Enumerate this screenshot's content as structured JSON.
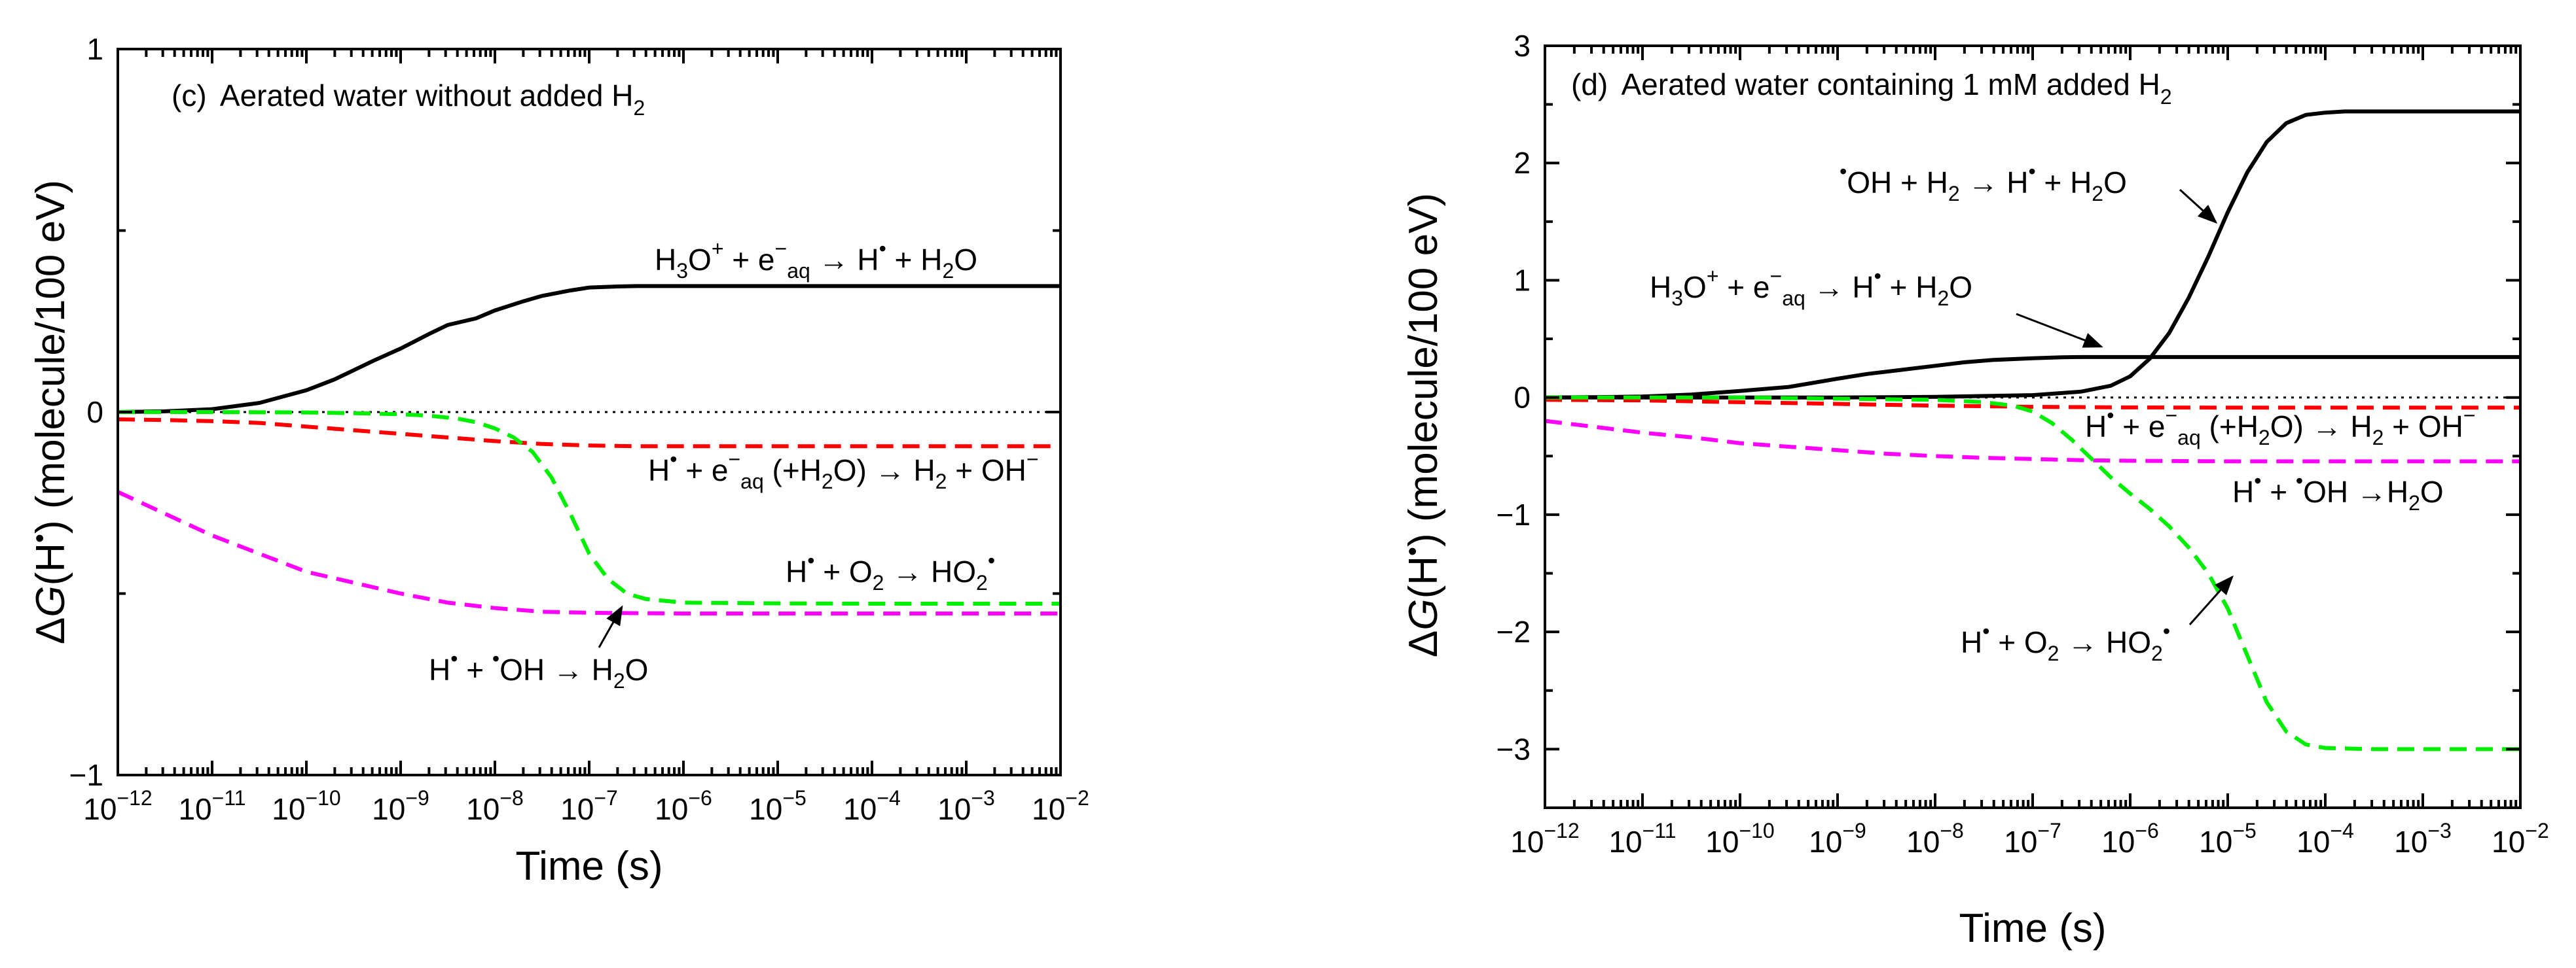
{
  "chart_data": [
    {
      "type": "line",
      "panel": "c",
      "title_prefix": "(c)",
      "title": "Aerated water without added H",
      "title_sub": "2",
      "xlabel": "Time (s)",
      "ylabel_prefix": "Δ",
      "ylabel_var": "G",
      "ylabel_rest": "(H",
      "ylabel_sup": "•",
      "ylabel_end": ") (molecule/100 eV)",
      "x_scale": "log",
      "xlim_exp": [
        -12,
        -2
      ],
      "ylim": [
        -1,
        1
      ],
      "x_ticks": [
        {
          "exp": -12,
          "base": "10",
          "label": "−12"
        },
        {
          "exp": -11,
          "base": "10",
          "label": "−11"
        },
        {
          "exp": -10,
          "base": "10",
          "label": "−10"
        },
        {
          "exp": -9,
          "base": "10",
          "label": "−9"
        },
        {
          "exp": -8,
          "base": "10",
          "label": "−8"
        },
        {
          "exp": -7,
          "base": "10",
          "label": "−7"
        },
        {
          "exp": -6,
          "base": "10",
          "label": "−6"
        },
        {
          "exp": -5,
          "base": "10",
          "label": "−5"
        },
        {
          "exp": -4,
          "base": "10",
          "label": "−4"
        },
        {
          "exp": -3,
          "base": "10",
          "label": "−3"
        },
        {
          "exp": -2,
          "base": "10",
          "label": "−2"
        }
      ],
      "y_ticks": [
        {
          "value": 1,
          "label": "1"
        },
        {
          "value": 0,
          "label": "0"
        },
        {
          "value": -1,
          "label": "−1"
        }
      ],
      "zero_line": true,
      "series": [
        {
          "name": "H3O+ + e-aq -> H + H2O",
          "color": "#000000",
          "style": "solid",
          "x": [
            -12,
            -11.5,
            -11,
            -10.5,
            -10,
            -9.7,
            -9.5,
            -9.3,
            -9.0,
            -8.7,
            -8.5,
            -8.2,
            -8.0,
            -7.7,
            -7.5,
            -7.2,
            -7.0,
            -6.7,
            -6.5,
            -6.0,
            -5.0,
            -4.0,
            -3.0,
            -2.0
          ],
          "y": [
            0,
            0.002,
            0.008,
            0.025,
            0.06,
            0.09,
            0.115,
            0.14,
            0.175,
            0.215,
            0.24,
            0.258,
            0.28,
            0.305,
            0.32,
            0.335,
            0.343,
            0.346,
            0.347,
            0.347,
            0.347,
            0.347,
            0.347,
            0.347
          ]
        },
        {
          "name": "H + e-aq (+H2O) -> H2 + OH-",
          "color": "#ff0000",
          "style": "dashed",
          "x": [
            -12,
            -11.5,
            -11,
            -10.5,
            -10,
            -9.5,
            -9,
            -8.5,
            -8,
            -7.5,
            -7,
            -6.5,
            -6,
            -5,
            -4,
            -3,
            -2
          ],
          "y": [
            -0.02,
            -0.022,
            -0.025,
            -0.03,
            -0.04,
            -0.05,
            -0.06,
            -0.07,
            -0.08,
            -0.088,
            -0.092,
            -0.094,
            -0.094,
            -0.094,
            -0.094,
            -0.094,
            -0.094
          ]
        },
        {
          "name": "H + O2 -> HO2",
          "color": "#00ee00",
          "style": "dashed",
          "x": [
            -12,
            -11,
            -10,
            -9.5,
            -9,
            -8.7,
            -8.4,
            -8.2,
            -8.0,
            -7.8,
            -7.6,
            -7.4,
            -7.2,
            -7.0,
            -6.8,
            -6.6,
            -6.4,
            -6.2,
            -6.0,
            -5.0,
            -4.0,
            -3.0,
            -2.0
          ],
          "y": [
            0,
            0,
            -0.001,
            -0.003,
            -0.006,
            -0.01,
            -0.018,
            -0.028,
            -0.045,
            -0.07,
            -0.11,
            -0.18,
            -0.28,
            -0.39,
            -0.46,
            -0.5,
            -0.515,
            -0.52,
            -0.525,
            -0.527,
            -0.528,
            -0.528,
            -0.528
          ]
        },
        {
          "name": "H + OH -> H2O",
          "color": "#ff00ff",
          "style": "dashed",
          "x": [
            -12,
            -11.5,
            -11,
            -10.5,
            -10,
            -9.5,
            -9,
            -8.5,
            -8,
            -7.5,
            -7,
            -6.5,
            -6,
            -5,
            -4,
            -3,
            -2
          ],
          "y": [
            -0.22,
            -0.28,
            -0.34,
            -0.39,
            -0.44,
            -0.47,
            -0.5,
            -0.525,
            -0.54,
            -0.55,
            -0.553,
            -0.554,
            -0.555,
            -0.555,
            -0.555,
            -0.555,
            -0.555
          ]
        }
      ],
      "annotations": [
        {
          "id": "a1",
          "text": "H3O+ + e−aq → H• + H2O"
        },
        {
          "id": "a2",
          "text": "H• + e−aq (+H2O) → H2 + OH−"
        },
        {
          "id": "a3",
          "text": "H• + O2 → HO2•"
        },
        {
          "id": "a4",
          "text": "H• + •OH → H2O"
        }
      ]
    },
    {
      "type": "line",
      "panel": "d",
      "title_prefix": "(d)",
      "title": "Aerated water containing 1 mM added H",
      "title_sub": "2",
      "xlabel": "Time (s)",
      "ylabel_prefix": "Δ",
      "ylabel_var": "G",
      "ylabel_rest": "(H",
      "ylabel_sup": "•",
      "ylabel_end": ") (molecule/100 eV)",
      "x_scale": "log",
      "xlim_exp": [
        -12,
        -2
      ],
      "ylim": [
        -3.5,
        3
      ],
      "x_ticks": [
        {
          "exp": -12,
          "base": "10",
          "label": "−12"
        },
        {
          "exp": -11,
          "base": "10",
          "label": "−11"
        },
        {
          "exp": -10,
          "base": "10",
          "label": "−10"
        },
        {
          "exp": -9,
          "base": "10",
          "label": "−9"
        },
        {
          "exp": -8,
          "base": "10",
          "label": "−8"
        },
        {
          "exp": -7,
          "base": "10",
          "label": "−7"
        },
        {
          "exp": -6,
          "base": "10",
          "label": "−6"
        },
        {
          "exp": -5,
          "base": "10",
          "label": "−5"
        },
        {
          "exp": -4,
          "base": "10",
          "label": "−4"
        },
        {
          "exp": -3,
          "base": "10",
          "label": "−3"
        },
        {
          "exp": -2,
          "base": "10",
          "label": "−2"
        }
      ],
      "y_ticks": [
        {
          "value": 3,
          "label": "3"
        },
        {
          "value": 2,
          "label": "2"
        },
        {
          "value": 1,
          "label": "1"
        },
        {
          "value": 0,
          "label": "0"
        },
        {
          "value": -1,
          "label": "−1"
        },
        {
          "value": -2,
          "label": "−2"
        },
        {
          "value": -3,
          "label": "−3"
        }
      ],
      "zero_line": true,
      "series": [
        {
          "name": "OH + H2 -> H + H2O",
          "color": "#000000",
          "style": "solid",
          "x": [
            -12,
            -11,
            -10,
            -9,
            -8,
            -7,
            -6.5,
            -6.2,
            -6.0,
            -5.8,
            -5.6,
            -5.4,
            -5.2,
            -5.0,
            -4.8,
            -4.6,
            -4.4,
            -4.2,
            -4.0,
            -3.8,
            -3.0,
            -2.0
          ],
          "y": [
            0,
            0,
            0,
            0,
            0.005,
            0.02,
            0.05,
            0.1,
            0.18,
            0.33,
            0.55,
            0.85,
            1.2,
            1.58,
            1.92,
            2.18,
            2.34,
            2.41,
            2.43,
            2.44,
            2.44,
            2.44
          ]
        },
        {
          "name": "H3O+ + e-aq -> H + H2O",
          "color": "#000000",
          "style": "solid",
          "x": [
            -12,
            -11.5,
            -11,
            -10.5,
            -10,
            -9.5,
            -9.0,
            -8.7,
            -8.4,
            -8.0,
            -7.7,
            -7.4,
            -7.0,
            -6.7,
            -6.5,
            -6.0,
            -5.0,
            -4.0,
            -3.0,
            -2.0
          ],
          "y": [
            0,
            0.002,
            0.008,
            0.025,
            0.055,
            0.09,
            0.16,
            0.2,
            0.23,
            0.27,
            0.3,
            0.32,
            0.335,
            0.343,
            0.345,
            0.345,
            0.345,
            0.345,
            0.345,
            0.345
          ]
        },
        {
          "name": "H + e-aq (+H2O) -> H2 + OH-",
          "color": "#ff0000",
          "style": "dashed",
          "x": [
            -12,
            -11,
            -10,
            -9,
            -8,
            -7,
            -6,
            -5,
            -4,
            -3,
            -2
          ],
          "y": [
            -0.02,
            -0.025,
            -0.04,
            -0.055,
            -0.07,
            -0.08,
            -0.085,
            -0.087,
            -0.087,
            -0.087,
            -0.087
          ]
        },
        {
          "name": "H + OH -> H2O",
          "color": "#ff00ff",
          "style": "dashed",
          "x": [
            -12,
            -11.5,
            -11,
            -10.5,
            -10,
            -9.5,
            -9,
            -8.5,
            -8,
            -7.5,
            -7,
            -6.5,
            -6,
            -5,
            -4,
            -3,
            -2
          ],
          "y": [
            -0.2,
            -0.25,
            -0.3,
            -0.34,
            -0.39,
            -0.42,
            -0.45,
            -0.48,
            -0.5,
            -0.515,
            -0.525,
            -0.535,
            -0.54,
            -0.545,
            -0.545,
            -0.545,
            -0.545
          ]
        },
        {
          "name": "H + O2 -> HO2",
          "color": "#00ee00",
          "style": "dashed",
          "x": [
            -12,
            -11,
            -10,
            -9,
            -8,
            -7.5,
            -7.2,
            -7.0,
            -6.8,
            -6.6,
            -6.4,
            -6.2,
            -6.0,
            -5.8,
            -5.6,
            -5.4,
            -5.2,
            -5.0,
            -4.8,
            -4.6,
            -4.4,
            -4.2,
            -4.0,
            -3.5,
            -3.0,
            -2.0
          ],
          "y": [
            0,
            0,
            0,
            -0.01,
            -0.02,
            -0.04,
            -0.07,
            -0.12,
            -0.22,
            -0.36,
            -0.52,
            -0.68,
            -0.82,
            -0.95,
            -1.1,
            -1.28,
            -1.5,
            -1.8,
            -2.2,
            -2.6,
            -2.85,
            -2.96,
            -2.99,
            -3.0,
            -3.0,
            -3.0
          ]
        }
      ],
      "annotations": [
        {
          "id": "b1",
          "text": "•OH + H2 → H• + H2O"
        },
        {
          "id": "b2",
          "text": "H3O+ + e−aq → H• + H2O"
        },
        {
          "id": "b3",
          "text": "H• + e−aq (+H2O) → H2 + OH−"
        },
        {
          "id": "b4",
          "text": "H• + •OH →H2O"
        },
        {
          "id": "b5",
          "text": "H• + O2 → HO2•"
        }
      ]
    }
  ]
}
